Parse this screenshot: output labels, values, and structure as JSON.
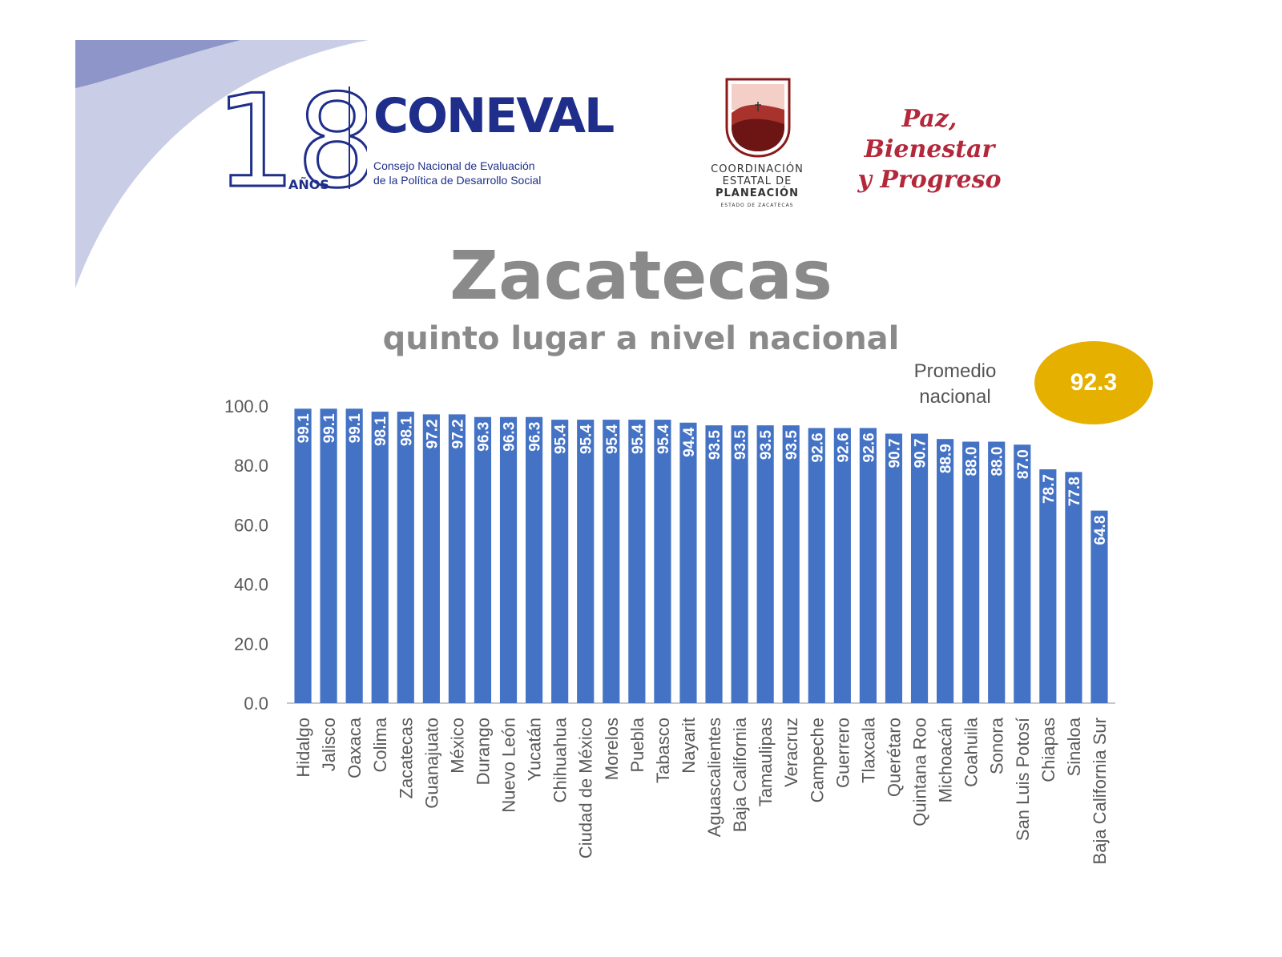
{
  "header": {
    "anniversary_number": "18",
    "anniversary_word": "AÑOS",
    "coneval_name": "CONEVAL",
    "coneval_line1": "Consejo Nacional de Evaluación",
    "coneval_line2": "de la Política de Desarrollo Social",
    "coord_line1": "COORDINACIÓN",
    "coord_line2": "ESTATAL DE",
    "coord_line3": "PLANEACIÓN",
    "coord_line4": "ESTADO DE ZACATECAS",
    "slogan_line1": "Paz, Bienestar",
    "slogan_line2": "y Progreso"
  },
  "title": "Zacatecas",
  "subtitle": "quinto lugar a nivel nacional",
  "average": {
    "label": "Promedio\nnacional",
    "value": "92.3"
  },
  "colors": {
    "bar": "#4472c4",
    "badge": "#e6b000",
    "title": "#8a8a8a",
    "brand_blue": "#1f2e8a",
    "brand_red": "#b3283a"
  },
  "chart_data": {
    "type": "bar",
    "categories": [
      "Hidalgo",
      "Jalisco",
      "Oaxaca",
      "Colima",
      "Zacatecas",
      "Guanajuato",
      "México",
      "Durango",
      "Nuevo León",
      "Yucatán",
      "Chihuahua",
      "Ciudad de México",
      "Morelos",
      "Puebla",
      "Tabasco",
      "Nayarit",
      "Aguascalientes",
      "Baja California",
      "Tamaulipas",
      "Veracruz",
      "Campeche",
      "Guerrero",
      "Tlaxcala",
      "Querétaro",
      "Quintana Roo",
      "Michoacán",
      "Coahuila",
      "Sonora",
      "San Luis Potosí",
      "Chiapas",
      "Sinaloa",
      "Baja California Sur"
    ],
    "values": [
      99.1,
      99.1,
      99.1,
      98.1,
      98.1,
      97.2,
      97.2,
      96.3,
      96.3,
      96.3,
      95.4,
      95.4,
      95.4,
      95.4,
      95.4,
      94.4,
      93.5,
      93.5,
      93.5,
      93.5,
      92.6,
      92.6,
      92.6,
      90.7,
      90.7,
      88.9,
      88.0,
      88.0,
      87.0,
      78.7,
      77.8,
      64.8
    ],
    "value_labels": [
      "99.1",
      "99.1",
      "99.1",
      "98.1",
      "98.1",
      "97.2",
      "97.2",
      "96.3",
      "96.3",
      "96.3",
      "95.4",
      "95.4",
      "95.4",
      "95.4",
      "95.4",
      "94.4",
      "93.5",
      "93.5",
      "93.5",
      "93.5",
      "92.6",
      "92.6",
      "92.6",
      "90.7",
      "90.7",
      "88.9",
      "88.0",
      "88.0",
      "87.0",
      "78.7",
      "77.8",
      "64.8"
    ],
    "yticks": [
      "0.0",
      "20.0",
      "40.0",
      "60.0",
      "80.0",
      "100.0"
    ],
    "ylim": [
      0,
      100
    ],
    "grid": false,
    "legend": "none"
  }
}
